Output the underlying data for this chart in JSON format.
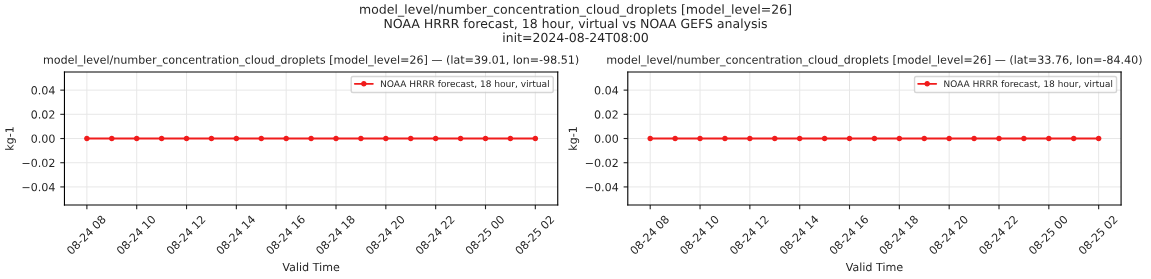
{
  "chart_data": [
    {
      "type": "line",
      "title": "model_level/number_concentration_cloud_droplets [model_level=26] — (lat=39.01, lon=-98.51)",
      "annotations": [
        "model_level/number_concentration_cloud_droplets [model_level=26]",
        "NOAA HRRR forecast, 18 hour, virtual vs NOAA GEFS analysis",
        "init=2024-08-24T08:00"
      ],
      "xlabel": "Valid Time",
      "ylabel": "kg-1",
      "x": [
        "2024-08-24T08:00",
        "2024-08-24T09:00",
        "2024-08-24T10:00",
        "2024-08-24T11:00",
        "2024-08-24T12:00",
        "2024-08-24T13:00",
        "2024-08-24T14:00",
        "2024-08-24T15:00",
        "2024-08-24T16:00",
        "2024-08-24T17:00",
        "2024-08-24T18:00",
        "2024-08-24T19:00",
        "2024-08-24T20:00",
        "2024-08-24T21:00",
        "2024-08-24T22:00",
        "2024-08-24T23:00",
        "2024-08-25T00:00",
        "2024-08-25T01:00",
        "2024-08-25T02:00"
      ],
      "series": [
        {
          "name": "NOAA HRRR forecast, 18 hour, virtual",
          "color": "#f01c1c",
          "values": [
            0,
            0,
            0,
            0,
            0,
            0,
            0,
            0,
            0,
            0,
            0,
            0,
            0,
            0,
            0,
            0,
            0,
            0,
            0
          ]
        }
      ],
      "xlim": [
        "2024-08-24T07:06",
        "2024-08-25T02:54"
      ],
      "ylim": [
        -0.055,
        0.055
      ],
      "yticks": [
        {
          "value": -0.04,
          "label": "−0.04"
        },
        {
          "value": -0.02,
          "label": "−0.02"
        },
        {
          "value": 0,
          "label": "0.00"
        },
        {
          "value": 0.02,
          "label": "0.02"
        },
        {
          "value": 0.04,
          "label": "0.04"
        }
      ],
      "xticks": [
        {
          "value": "2024-08-24T08:00",
          "label": "08-24 08"
        },
        {
          "value": "2024-08-24T10:00",
          "label": "08-24 10"
        },
        {
          "value": "2024-08-24T12:00",
          "label": "08-24 12"
        },
        {
          "value": "2024-08-24T14:00",
          "label": "08-24 14"
        },
        {
          "value": "2024-08-24T16:00",
          "label": "08-24 16"
        },
        {
          "value": "2024-08-24T18:00",
          "label": "08-24 18"
        },
        {
          "value": "2024-08-24T20:00",
          "label": "08-24 20"
        },
        {
          "value": "2024-08-24T22:00",
          "label": "08-24 22"
        },
        {
          "value": "2024-08-25T00:00",
          "label": "08-25 00"
        },
        {
          "value": "2024-08-25T02:00",
          "label": "08-25 02"
        }
      ],
      "grid": true,
      "legend": "top right",
      "marker": "circle",
      "line_style": "solid"
    },
    {
      "type": "line",
      "title": "model_level/number_concentration_cloud_droplets [model_level=26] — (lat=33.76, lon=-84.40)",
      "xlabel": "Valid Time",
      "ylabel": "kg-1",
      "x": [
        "2024-08-24T08:00",
        "2024-08-24T09:00",
        "2024-08-24T10:00",
        "2024-08-24T11:00",
        "2024-08-24T12:00",
        "2024-08-24T13:00",
        "2024-08-24T14:00",
        "2024-08-24T15:00",
        "2024-08-24T16:00",
        "2024-08-24T17:00",
        "2024-08-24T18:00",
        "2024-08-24T19:00",
        "2024-08-24T20:00",
        "2024-08-24T21:00",
        "2024-08-24T22:00",
        "2024-08-24T23:00",
        "2024-08-25T00:00",
        "2024-08-25T01:00",
        "2024-08-25T02:00"
      ],
      "series": [
        {
          "name": "NOAA HRRR forecast, 18 hour, virtual",
          "color": "#f01c1c",
          "values": [
            0,
            0,
            0,
            0,
            0,
            0,
            0,
            0,
            0,
            0,
            0,
            0,
            0,
            0,
            0,
            0,
            0,
            0,
            0
          ]
        }
      ],
      "xlim": [
        "2024-08-24T07:06",
        "2024-08-25T02:54"
      ],
      "ylim": [
        -0.055,
        0.055
      ],
      "yticks": [
        {
          "value": -0.04,
          "label": "−0.04"
        },
        {
          "value": -0.02,
          "label": "−0.02"
        },
        {
          "value": 0,
          "label": "0.00"
        },
        {
          "value": 0.02,
          "label": "0.02"
        },
        {
          "value": 0.04,
          "label": "0.04"
        }
      ],
      "xticks": [
        {
          "value": "2024-08-24T08:00",
          "label": "08-24 08"
        },
        {
          "value": "2024-08-24T10:00",
          "label": "08-24 10"
        },
        {
          "value": "2024-08-24T12:00",
          "label": "08-24 12"
        },
        {
          "value": "2024-08-24T14:00",
          "label": "08-24 14"
        },
        {
          "value": "2024-08-24T16:00",
          "label": "08-24 16"
        },
        {
          "value": "2024-08-24T18:00",
          "label": "08-24 18"
        },
        {
          "value": "2024-08-24T20:00",
          "label": "08-24 20"
        },
        {
          "value": "2024-08-24T22:00",
          "label": "08-24 22"
        },
        {
          "value": "2024-08-25T00:00",
          "label": "08-25 00"
        },
        {
          "value": "2024-08-25T02:00",
          "label": "08-25 02"
        }
      ],
      "grid": true,
      "legend": "top right",
      "marker": "circle",
      "line_style": "solid"
    }
  ]
}
